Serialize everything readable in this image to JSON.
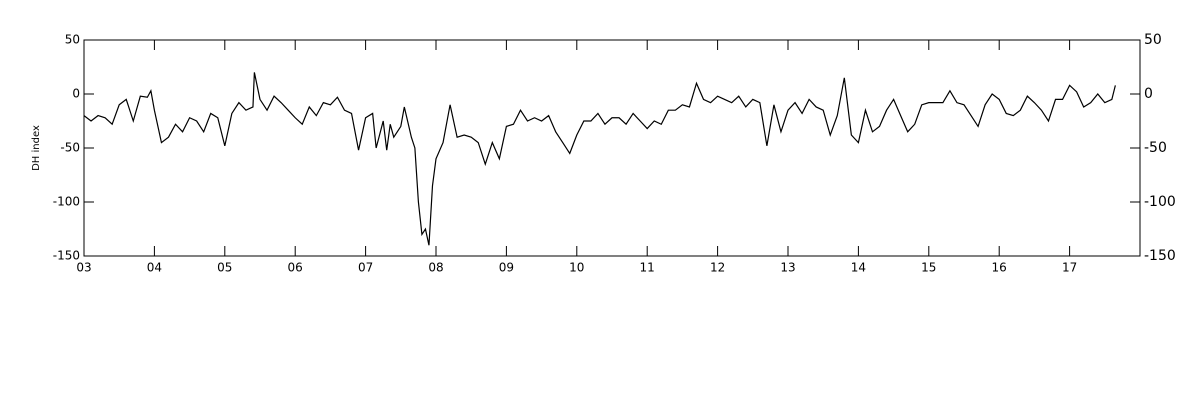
{
  "chart_data": {
    "type": "line",
    "y_label": "DH index",
    "color": "#000000",
    "x": [
      3.0,
      3.1,
      3.2,
      3.3,
      3.4,
      3.5,
      3.6,
      3.7,
      3.8,
      3.9,
      3.95,
      4.0,
      4.1,
      4.2,
      4.3,
      4.4,
      4.5,
      4.6,
      4.7,
      4.8,
      4.9,
      5.0,
      5.1,
      5.2,
      5.3,
      5.4,
      5.42,
      5.5,
      5.6,
      5.7,
      5.8,
      5.9,
      6.0,
      6.1,
      6.2,
      6.3,
      6.4,
      6.5,
      6.6,
      6.7,
      6.8,
      6.9,
      7.0,
      7.1,
      7.15,
      7.25,
      7.3,
      7.35,
      7.4,
      7.5,
      7.55,
      7.65,
      7.7,
      7.75,
      7.8,
      7.85,
      7.9,
      7.95,
      8.0,
      8.1,
      8.2,
      8.3,
      8.4,
      8.5,
      8.6,
      8.7,
      8.8,
      8.9,
      9.0,
      9.1,
      9.2,
      9.3,
      9.4,
      9.5,
      9.6,
      9.7,
      9.8,
      9.9,
      10.0,
      10.1,
      10.2,
      10.3,
      10.4,
      10.5,
      10.6,
      10.7,
      10.8,
      10.9,
      11.0,
      11.1,
      11.2,
      11.3,
      11.4,
      11.5,
      11.6,
      11.7,
      11.8,
      11.9,
      12.0,
      12.1,
      12.2,
      12.3,
      12.4,
      12.5,
      12.6,
      12.7,
      12.8,
      12.9,
      13.0,
      13.1,
      13.2,
      13.3,
      13.4,
      13.5,
      13.6,
      13.7,
      13.8,
      13.9,
      14.0,
      14.1,
      14.2,
      14.3,
      14.4,
      14.5,
      14.6,
      14.7,
      14.8,
      14.9,
      15.0,
      15.1,
      15.2,
      15.3,
      15.4,
      15.5,
      15.6,
      15.7,
      15.8,
      15.9,
      16.0,
      16.1,
      16.2,
      16.3,
      16.4,
      16.5,
      16.6,
      16.7,
      16.8,
      16.9,
      17.0,
      17.1,
      17.2,
      17.3,
      17.4,
      17.5,
      17.6,
      17.65
    ],
    "values": [
      -20,
      -25,
      -20,
      -22,
      -28,
      -10,
      -5,
      -25,
      -2,
      -3,
      3,
      -15,
      -45,
      -40,
      -28,
      -35,
      -22,
      -25,
      -35,
      -18,
      -22,
      -48,
      -18,
      -8,
      -15,
      -12,
      20,
      -5,
      -15,
      -2,
      -8,
      -15,
      -22,
      -28,
      -12,
      -20,
      -8,
      -10,
      -3,
      -15,
      -18,
      -52,
      -22,
      -18,
      -50,
      -25,
      -52,
      -28,
      -40,
      -30,
      -12,
      -40,
      -50,
      -100,
      -130,
      -125,
      -140,
      -85,
      -60,
      -45,
      -10,
      -40,
      -38,
      -40,
      -45,
      -65,
      -45,
      -60,
      -30,
      -28,
      -15,
      -25,
      -22,
      -25,
      -20,
      -35,
      -45,
      -55,
      -38,
      -25,
      -25,
      -18,
      -28,
      -22,
      -22,
      -28,
      -18,
      -25,
      -32,
      -25,
      -28,
      -15,
      -15,
      -10,
      -12,
      10,
      -5,
      -8,
      -2,
      -5,
      -8,
      -2,
      -12,
      -5,
      -8,
      -48,
      -10,
      -35,
      -15,
      -8,
      -18,
      -5,
      -12,
      -15,
      -38,
      -20,
      15,
      -38,
      -45,
      -15,
      -35,
      -30,
      -15,
      -5,
      -20,
      -35,
      -28,
      -10,
      -8,
      -8,
      -8,
      3,
      -8,
      -10,
      -20,
      -30,
      -10,
      0,
      -5,
      -18,
      -20,
      -15,
      -2,
      -8,
      -15,
      -25,
      -5,
      -5,
      8,
      2,
      -12,
      -8,
      0,
      -8,
      -5,
      8
    ],
    "xlim": [
      3,
      18
    ],
    "xticks": [
      {
        "value": 3,
        "label": "03"
      },
      {
        "value": 4,
        "label": "04"
      },
      {
        "value": 5,
        "label": "05"
      },
      {
        "value": 6,
        "label": "06"
      },
      {
        "value": 7,
        "label": "07"
      },
      {
        "value": 8,
        "label": "08"
      },
      {
        "value": 9,
        "label": "09"
      },
      {
        "value": 10,
        "label": "10"
      },
      {
        "value": 11,
        "label": "11"
      },
      {
        "value": 12,
        "label": "12"
      },
      {
        "value": 13,
        "label": "13"
      },
      {
        "value": 14,
        "label": "14"
      },
      {
        "value": 15,
        "label": "15"
      },
      {
        "value": 16,
        "label": "16"
      },
      {
        "value": 17,
        "label": "17"
      }
    ],
    "ylim": [
      -150,
      50
    ],
    "yticks": [
      -150,
      -100,
      -50,
      0,
      50
    ]
  }
}
